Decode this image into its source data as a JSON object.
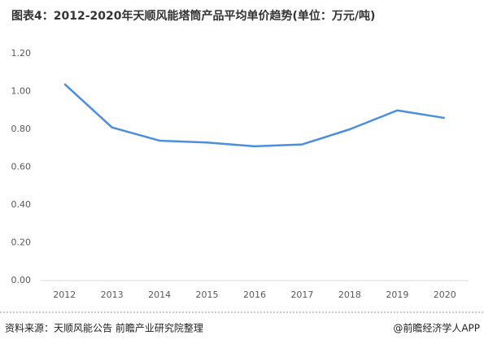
{
  "chart_data": {
    "type": "line",
    "title": "图表4：2012-2020年天顺风能塔筒产品平均单价趋势(单位：万元/吨)",
    "categories": [
      "2012",
      "2013",
      "2014",
      "2015",
      "2016",
      "2017",
      "2018",
      "2019",
      "2020"
    ],
    "values": [
      1.04,
      0.81,
      0.74,
      0.73,
      0.71,
      0.72,
      0.8,
      0.9,
      0.86
    ],
    "color": "#4a8fdf",
    "ylim": [
      0,
      1.2
    ],
    "yticks": [
      {
        "value": 0,
        "label": "0.00"
      },
      {
        "value": 0.2,
        "label": "0.20"
      },
      {
        "value": 0.4,
        "label": "0.40"
      },
      {
        "value": 0.6,
        "label": "0.60"
      },
      {
        "value": 0.8,
        "label": "0.80"
      },
      {
        "value": 1.0,
        "label": "1.00"
      },
      {
        "value": 1.2,
        "label": "1.20"
      }
    ],
    "grid": false,
    "source": "资料来源：天顺风能公告 前瞻产业研究院整理",
    "credit": "@前瞻经济学人APP"
  }
}
